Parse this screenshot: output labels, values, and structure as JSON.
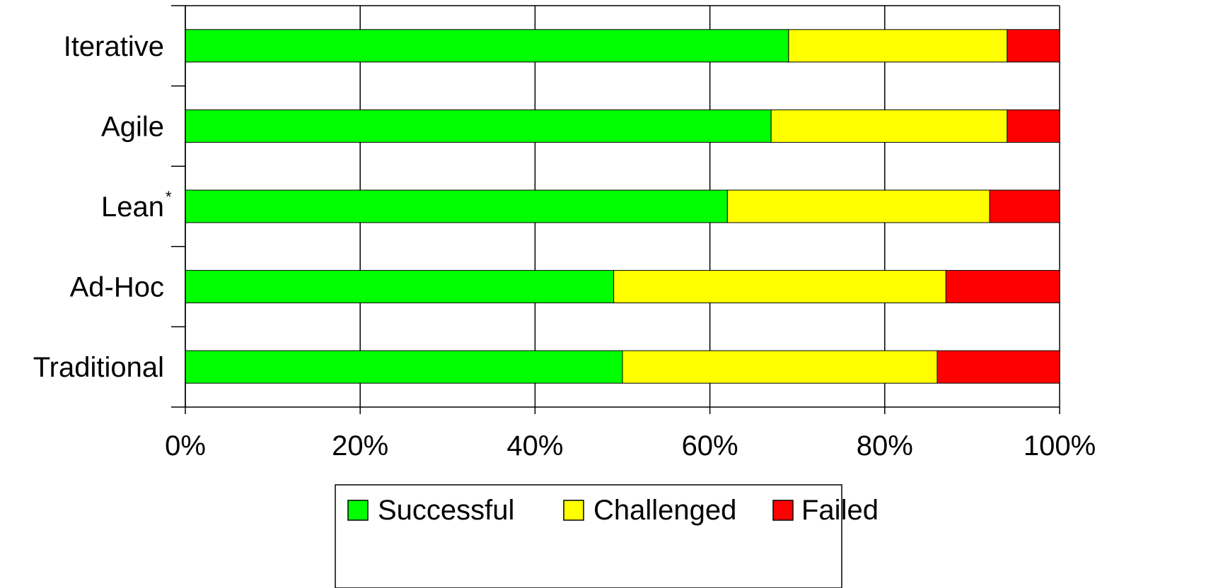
{
  "chart_data": {
    "type": "bar",
    "orientation": "horizontal",
    "stacked": true,
    "categories": [
      "Iterative",
      "Agile",
      "Lean",
      "Ad-Hoc",
      "Traditional"
    ],
    "category_marks": [
      "",
      "",
      "*",
      "",
      ""
    ],
    "series": [
      {
        "name": "Successful",
        "values": [
          69,
          67,
          62,
          49,
          50
        ]
      },
      {
        "name": "Challenged",
        "values": [
          25,
          27,
          30,
          38,
          36
        ]
      },
      {
        "name": "Failed",
        "values": [
          6,
          6,
          8,
          13,
          14
        ]
      }
    ],
    "colors": {
      "Successful": "#00ff00",
      "Challenged": "#ffff00",
      "Failed": "#ff0000"
    },
    "xlim": [
      0,
      100
    ],
    "x_ticks": [
      "0%",
      "20%",
      "40%",
      "60%",
      "80%",
      "100%"
    ],
    "grid": "vertical",
    "legend_position": "bottom"
  }
}
